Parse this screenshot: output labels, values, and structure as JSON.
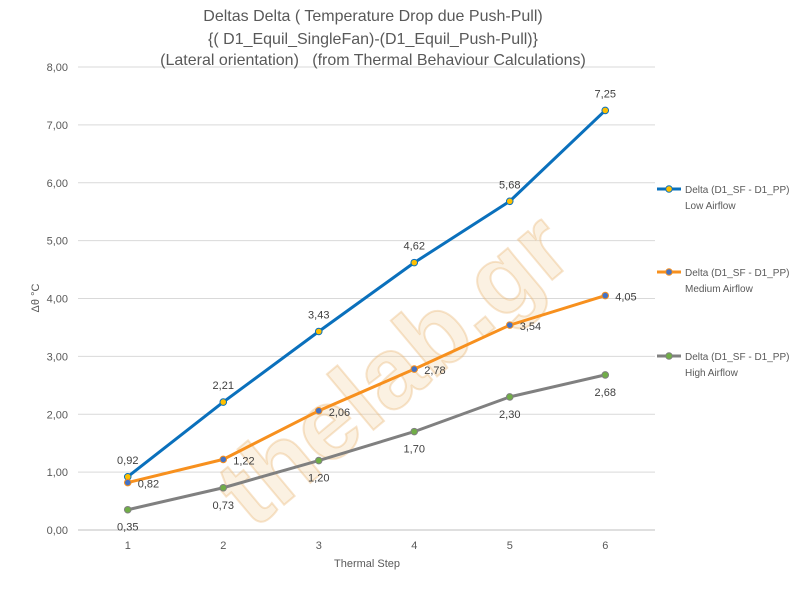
{
  "watermark": "thelab.gr",
  "chart_data": {
    "type": "line",
    "title": [
      "Deltas Delta ( Temperature Drop due Push-Pull)",
      "{( D1_Equil_SingleFan)-(D1_Equil_Push-Pull)}",
      "(Lateral orientation)   (from Thermal Behaviour Calculations)"
    ],
    "xlabel": "Thermal Step",
    "ylabel": "Δθ °C",
    "categories": [
      "1",
      "2",
      "3",
      "4",
      "5",
      "6"
    ],
    "ylim": [
      0,
      8
    ],
    "ytick_labels": [
      "0,00",
      "1,00",
      "2,00",
      "3,00",
      "4,00",
      "5,00",
      "6,00",
      "7,00",
      "8,00"
    ],
    "grid": true,
    "legend_position": "right",
    "data_labels": true,
    "series": [
      {
        "name": "Delta (D1_SF - D1_PP)",
        "subname": "Low Airflow",
        "values": [
          0.92,
          2.21,
          3.43,
          4.62,
          5.68,
          7.25
        ],
        "color": "#0A70BC",
        "marker_color": "#FFC000"
      },
      {
        "name": "Delta (D1_SF - D1_PP)",
        "subname": "Medium Airflow",
        "values": [
          0.82,
          1.22,
          2.06,
          2.78,
          3.54,
          4.05
        ],
        "color": "#F7901E",
        "marker_color": "#4472C4"
      },
      {
        "name": "Delta (D1_SF - D1_PP)",
        "subname": "High Airflow",
        "values": [
          0.35,
          0.73,
          1.2,
          1.7,
          2.3,
          2.68
        ],
        "color": "#808080",
        "marker_color": "#70AD47"
      }
    ]
  }
}
